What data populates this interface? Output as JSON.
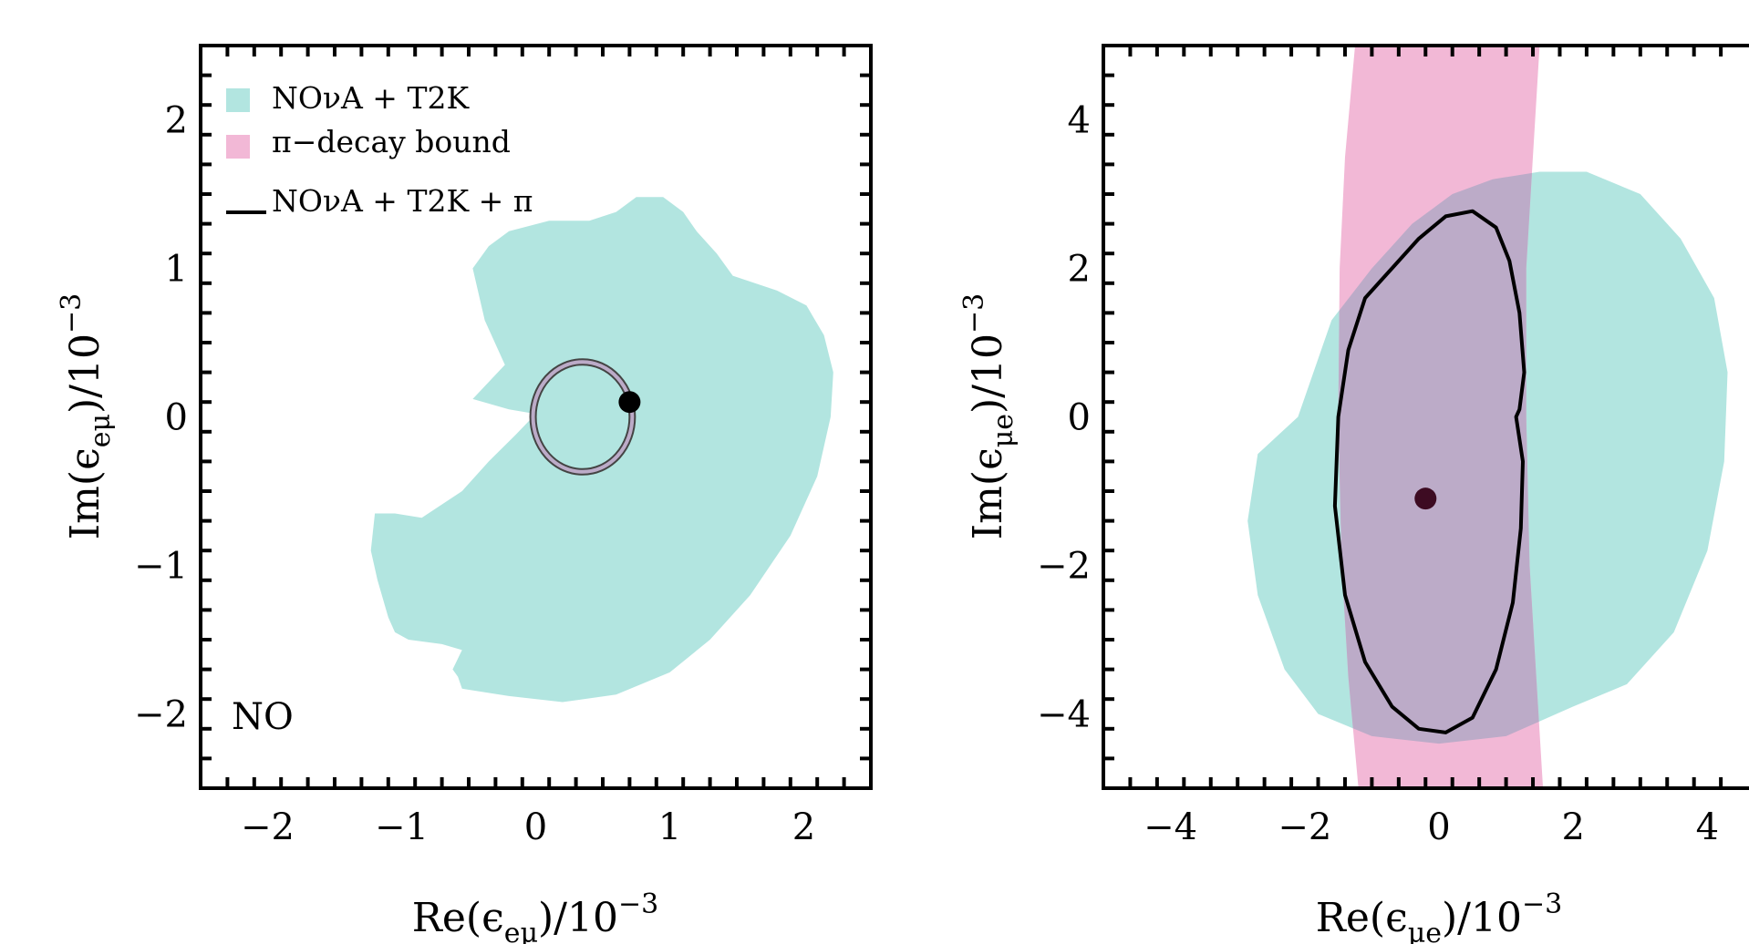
{
  "colors": {
    "nova_t2k": "#b2e5e0",
    "pi_decay": "#f2b8d6",
    "overlap": "#bcabc8",
    "combined_line": "#000000",
    "best_fit_left": "#000000",
    "best_fit_right": "#3d0b22"
  },
  "chart_data": [
    {
      "type": "contour",
      "name": "left-panel",
      "xlabel": {
        "prefix": "Re(ϵ",
        "sub": "eμ",
        "suffix": ")/10",
        "sup": "−3"
      },
      "ylabel": {
        "prefix": "Im(ϵ",
        "sub": "eμ",
        "suffix": ")/10",
        "sup": "−3"
      },
      "xlim": [
        -2.5,
        2.5
      ],
      "ylim": [
        -2.5,
        2.5
      ],
      "xticks": [
        -2,
        -1,
        0,
        1,
        2
      ],
      "yticks": [
        -2,
        -1,
        0,
        1,
        2
      ],
      "xtick_labels": [
        "−2",
        "−1",
        "0",
        "1",
        "2"
      ],
      "ytick_labels": [
        "−2",
        "−1",
        "0",
        "1",
        "2"
      ],
      "annotation": "NO",
      "legend": {
        "position": "top-left",
        "entries": [
          "NOνA + T2K",
          "π−decay bound",
          "NOνA + T2K + π"
        ]
      },
      "region_nova_t2k": [
        [
          -0.47,
          0.12
        ],
        [
          -0.23,
          0.35
        ],
        [
          -0.38,
          0.65
        ],
        [
          -0.47,
          1.0
        ],
        [
          -0.35,
          1.15
        ],
        [
          -0.2,
          1.25
        ],
        [
          0.1,
          1.32
        ],
        [
          0.4,
          1.32
        ],
        [
          0.6,
          1.38
        ],
        [
          0.75,
          1.48
        ],
        [
          0.95,
          1.48
        ],
        [
          1.1,
          1.38
        ],
        [
          1.2,
          1.25
        ],
        [
          1.35,
          1.1
        ],
        [
          1.47,
          0.95
        ],
        [
          1.8,
          0.85
        ],
        [
          2.02,
          0.75
        ],
        [
          2.15,
          0.55
        ],
        [
          2.22,
          0.3
        ],
        [
          2.2,
          0.0
        ],
        [
          2.1,
          -0.4
        ],
        [
          1.9,
          -0.8
        ],
        [
          1.6,
          -1.2
        ],
        [
          1.3,
          -1.5
        ],
        [
          1.0,
          -1.72
        ],
        [
          0.6,
          -1.87
        ],
        [
          0.2,
          -1.92
        ],
        [
          -0.2,
          -1.88
        ],
        [
          -0.55,
          -1.83
        ],
        [
          -0.58,
          -1.75
        ],
        [
          -0.62,
          -1.7
        ],
        [
          -0.55,
          -1.57
        ],
        [
          -0.7,
          -1.53
        ],
        [
          -0.95,
          -1.5
        ],
        [
          -1.05,
          -1.45
        ],
        [
          -1.1,
          -1.35
        ],
        [
          -1.18,
          -1.1
        ],
        [
          -1.23,
          -0.9
        ],
        [
          -1.2,
          -0.65
        ],
        [
          -1.05,
          -0.65
        ],
        [
          -0.85,
          -0.68
        ],
        [
          -0.55,
          -0.5
        ],
        [
          -0.35,
          -0.3
        ],
        [
          -0.15,
          -0.12
        ],
        [
          0.0,
          0.02
        ],
        [
          -0.2,
          0.05
        ]
      ],
      "combined_ring": {
        "center": [
          0.35,
          0.0
        ],
        "rx": 0.37,
        "ry": 0.37
      },
      "best_fit": [
        0.7,
        0.1
      ]
    },
    {
      "type": "contour",
      "name": "right-panel",
      "xlabel": {
        "prefix": "Re(ϵ",
        "sub": "μe",
        "suffix": ")/10",
        "sup": "−3"
      },
      "ylabel": {
        "prefix": "Im(ϵ",
        "sub": "μe",
        "suffix": ")/10",
        "sup": "−3"
      },
      "xlim": [
        -5,
        5
      ],
      "ylim": [
        -5,
        5
      ],
      "xticks": [
        -4,
        -2,
        0,
        2,
        4
      ],
      "yticks": [
        -4,
        -2,
        0,
        2,
        4
      ],
      "xtick_labels": [
        "−4",
        "−2",
        "0",
        "2",
        "4"
      ],
      "ytick_labels": [
        "−4",
        "−2",
        "0",
        "2",
        "4"
      ],
      "region_nova_t2k": [
        [
          -2.7,
          -0.5
        ],
        [
          -2.1,
          0.0
        ],
        [
          -1.6,
          1.3
        ],
        [
          -1.0,
          2.0
        ],
        [
          -0.4,
          2.6
        ],
        [
          0.2,
          3.0
        ],
        [
          0.8,
          3.2
        ],
        [
          1.5,
          3.3
        ],
        [
          2.2,
          3.3
        ],
        [
          3.0,
          3.0
        ],
        [
          3.6,
          2.4
        ],
        [
          4.1,
          1.6
        ],
        [
          4.3,
          0.6
        ],
        [
          4.25,
          -0.6
        ],
        [
          4.0,
          -1.8
        ],
        [
          3.5,
          -2.9
        ],
        [
          2.8,
          -3.6
        ],
        [
          2.0,
          -3.9
        ],
        [
          1.0,
          -4.3
        ],
        [
          0.0,
          -4.4
        ],
        [
          -1.0,
          -4.3
        ],
        [
          -1.8,
          -4.0
        ],
        [
          -2.3,
          -3.4
        ],
        [
          -2.7,
          -2.4
        ],
        [
          -2.85,
          -1.4
        ]
      ],
      "region_pi_decay": [
        [
          -1.25,
          5.0
        ],
        [
          1.5,
          5.0
        ],
        [
          1.4,
          3.5
        ],
        [
          1.3,
          2.0
        ],
        [
          1.3,
          0.0
        ],
        [
          1.35,
          -2.0
        ],
        [
          1.45,
          -3.5
        ],
        [
          1.55,
          -5.0
        ],
        [
          -1.2,
          -5.0
        ],
        [
          -1.35,
          -3.5
        ],
        [
          -1.45,
          -2.0
        ],
        [
          -1.5,
          0.0
        ],
        [
          -1.48,
          2.0
        ],
        [
          -1.4,
          3.5
        ]
      ],
      "combined_contour": [
        [
          0.5,
          2.77
        ],
        [
          0.85,
          2.55
        ],
        [
          1.05,
          2.1
        ],
        [
          1.2,
          1.4
        ],
        [
          1.27,
          0.6
        ],
        [
          1.2,
          0.1
        ],
        [
          1.15,
          0.0
        ],
        [
          1.25,
          -0.6
        ],
        [
          1.22,
          -1.5
        ],
        [
          1.1,
          -2.5
        ],
        [
          0.85,
          -3.4
        ],
        [
          0.5,
          -4.05
        ],
        [
          0.1,
          -4.25
        ],
        [
          -0.3,
          -4.2
        ],
        [
          -0.7,
          -3.9
        ],
        [
          -1.1,
          -3.3
        ],
        [
          -1.4,
          -2.4
        ],
        [
          -1.55,
          -1.2
        ],
        [
          -1.5,
          0.0
        ],
        [
          -1.35,
          0.9
        ],
        [
          -1.1,
          1.6
        ],
        [
          -0.7,
          2.0
        ],
        [
          -0.3,
          2.4
        ],
        [
          0.1,
          2.7
        ]
      ],
      "best_fit": [
        -0.2,
        -1.1
      ]
    }
  ]
}
